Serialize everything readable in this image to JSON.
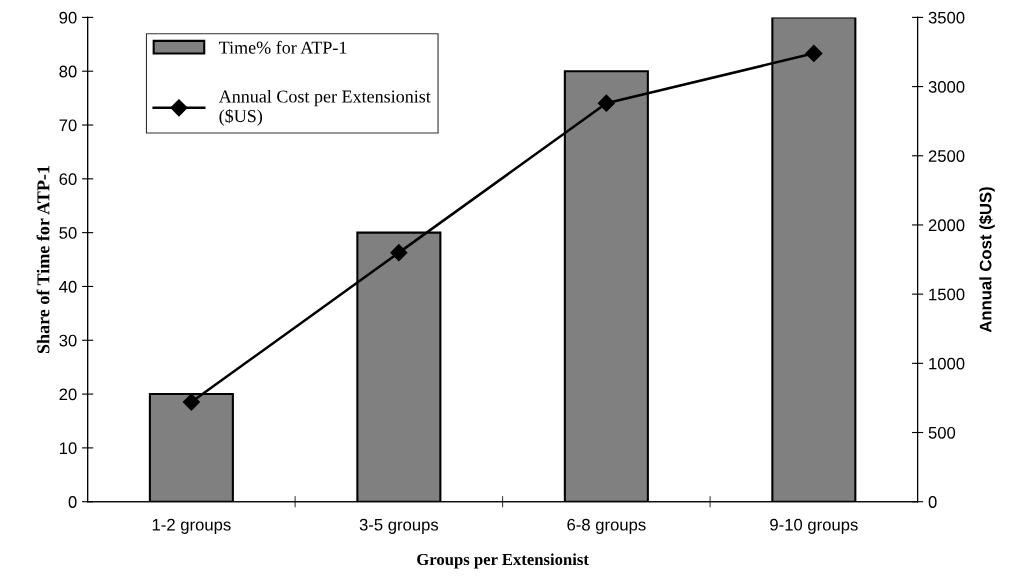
{
  "chart_data": {
    "type": "bar",
    "xlabel": "Groups per Extensionist",
    "ylabel": "Share of Time for ATP-1",
    "y2label": "Annual Cost ($US)",
    "categories": [
      "1-2 groups",
      "3-5 groups",
      "6-8 groups",
      "9-10 groups"
    ],
    "series": [
      {
        "name": "Time% for ATP-1",
        "color": "#808080",
        "values": [
          20,
          50,
          80,
          90
        ]
      },
      {
        "name": "Annual Cost per Extensionist ($US)",
        "type": "line",
        "axis": "y2",
        "color": "#000000",
        "marker": "diamond",
        "values": [
          720,
          1800,
          2880,
          3240
        ]
      }
    ],
    "ylim": [
      0,
      90
    ],
    "yticks": [
      0,
      10,
      20,
      30,
      40,
      50,
      60,
      70,
      80,
      90
    ],
    "y2lim": [
      0,
      3500
    ],
    "y2ticks": [
      0,
      500,
      1000,
      1500,
      2000,
      2500,
      3000,
      3500
    ],
    "legend": "top left",
    "grid": false
  }
}
